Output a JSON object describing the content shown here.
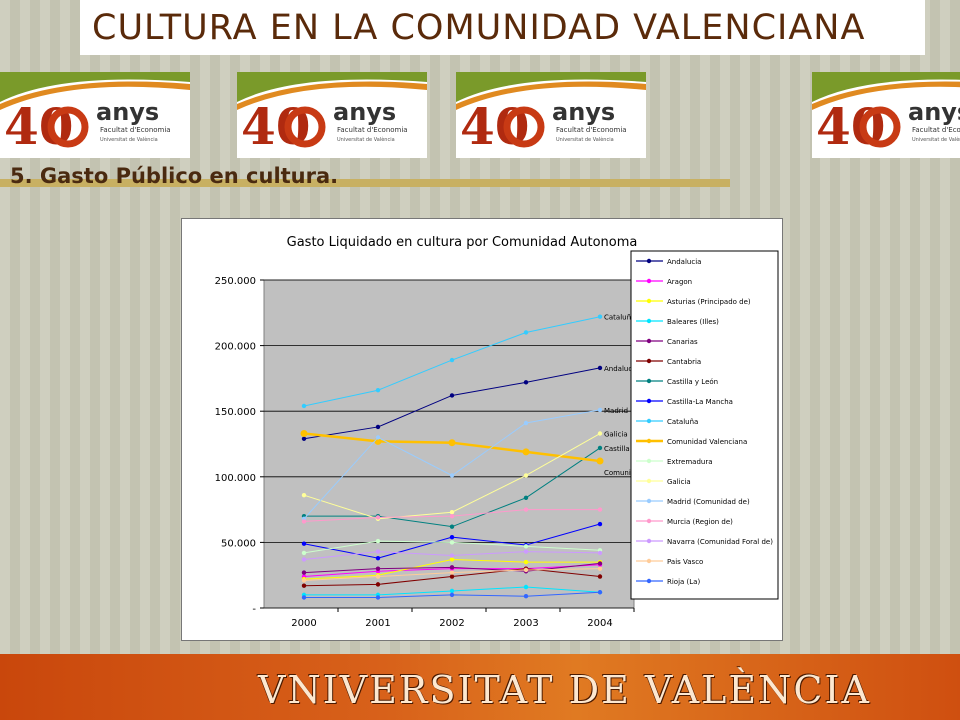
{
  "header": {
    "title": "CULTURA EN LA COMUNIDAD VALENCIANA"
  },
  "logos": [
    {
      "number": "40",
      "word": "anys",
      "sub1": "Facultat d'Economia",
      "sub2": "Universitat de València"
    },
    {
      "number": "40",
      "word": "anys",
      "sub1": "Facultat d'Economia",
      "sub2": "Universitat de València"
    },
    {
      "number": "40",
      "word": "anys",
      "sub1": "Facultat d'Economia",
      "sub2": "Universitat de València"
    },
    {
      "number": "40",
      "word": "anys",
      "sub1": "Facultat d'Economia",
      "sub2": "Universitat de València"
    }
  ],
  "section": {
    "title": "5.  Gasto Público en cultura."
  },
  "footer": {
    "text": "VNIVERSITAT  DE  VALÈNCIA"
  },
  "chart_data": {
    "type": "line",
    "title": "Gasto Liquidado en cultura por Comunidad Autonoma",
    "xlabel": "",
    "ylabel": "",
    "x": [
      "2000",
      "2001",
      "2002",
      "2003",
      "2004"
    ],
    "ylim": [
      0,
      250000
    ],
    "yticks": [
      "-",
      "50.000",
      "100.000",
      "150.000",
      "200.000",
      "250.000"
    ],
    "grid": "horizontal",
    "legend_position": "right",
    "series": [
      {
        "name": "Andalucia",
        "color": "#000080",
        "values": [
          129000,
          138000,
          162000,
          172000,
          183000
        ],
        "end_label": "Andalucia"
      },
      {
        "name": "Aragon",
        "color": "#ff00ff",
        "values": [
          24000,
          28000,
          30000,
          30000,
          33000
        ]
      },
      {
        "name": "Asturias (Principado de)",
        "color": "#ffff00",
        "values": [
          22000,
          25000,
          37000,
          35000,
          35000
        ]
      },
      {
        "name": "Baleares (Illes)",
        "color": "#00e5ff",
        "values": [
          10000,
          10000,
          13000,
          16000,
          12000
        ]
      },
      {
        "name": "Canarias",
        "color": "#800080",
        "values": [
          27000,
          30000,
          31000,
          28000,
          34000
        ]
      },
      {
        "name": "Cantabria",
        "color": "#800000",
        "values": [
          17000,
          18000,
          24000,
          30000,
          24000
        ]
      },
      {
        "name": "Castilla y León",
        "color": "#008080",
        "values": [
          70000,
          70000,
          62000,
          84000,
          122000
        ],
        "end_label": "Castilla y L"
      },
      {
        "name": "Castilla-La Mancha",
        "color": "#0000ff",
        "values": [
          49000,
          38000,
          54000,
          48000,
          64000
        ]
      },
      {
        "name": "Cataluña",
        "color": "#33ccff",
        "values": [
          154000,
          166000,
          189000,
          210000,
          222000
        ],
        "end_label": "Cataluña"
      },
      {
        "name": "Comunidad Valenciana",
        "color": "#ffc000",
        "values": [
          133000,
          127000,
          126000,
          119000,
          112000
        ],
        "end_label": "Comunidad Valenciana"
      },
      {
        "name": "Extremadura",
        "color": "#ccffcc",
        "values": [
          42000,
          51000,
          50000,
          47000,
          44000
        ]
      },
      {
        "name": "Galicia",
        "color": "#ffff99",
        "values": [
          86000,
          68000,
          73000,
          101000,
          133000
        ],
        "end_label": "Galicia"
      },
      {
        "name": "Madrid (Comunidad de)",
        "color": "#99ccff",
        "values": [
          68000,
          130000,
          101000,
          141000,
          151000
        ],
        "end_label": "Madrid (Co"
      },
      {
        "name": "Murcia (Region de)",
        "color": "#ff99cc",
        "values": [
          66000,
          69000,
          70000,
          75000,
          75000
        ]
      },
      {
        "name": "Navarra (Comunidad Foral de)",
        "color": "#cc99ff",
        "values": [
          37000,
          43000,
          40000,
          43000,
          42000
        ]
      },
      {
        "name": "Pais Vasco",
        "color": "#ffcc99",
        "values": [
          21000,
          24000,
          27000,
          29000,
          30000
        ]
      },
      {
        "name": "Rioja (La)",
        "color": "#3366ff",
        "values": [
          8000,
          8000,
          10000,
          9000,
          12000
        ]
      }
    ]
  }
}
